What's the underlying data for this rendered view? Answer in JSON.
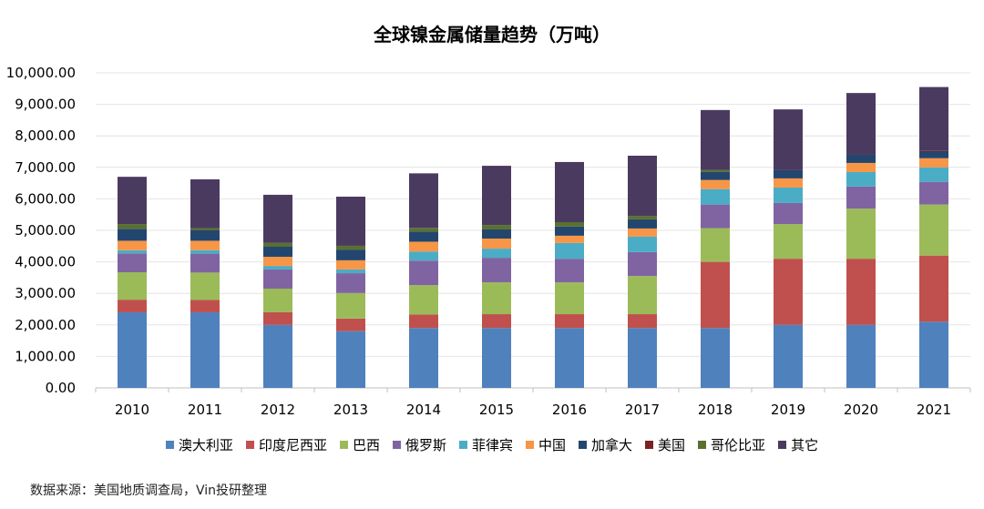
{
  "chart_data": {
    "type": "bar",
    "stacked": true,
    "title": "全球镍金属储量趋势（万吨）",
    "categories": [
      "2010",
      "2011",
      "2012",
      "2013",
      "2014",
      "2015",
      "2016",
      "2017",
      "2018",
      "2019",
      "2020",
      "2021"
    ],
    "ylim": [
      0,
      10000
    ],
    "yticks": [
      "0.00",
      "1,000.00",
      "2,000.00",
      "3,000.00",
      "4,000.00",
      "5,000.00",
      "6,000.00",
      "7,000.00",
      "8,000.00",
      "9,000.00",
      "10,000.00"
    ],
    "grid": true,
    "legend_position": "bottom",
    "series": [
      {
        "name": "澳大利亚",
        "color": "#4F81BD",
        "values": [
          2400,
          2400,
          2000,
          1800,
          1900,
          1900,
          1900,
          1900,
          1900,
          2000,
          2000,
          2100
        ]
      },
      {
        "name": "印度尼西亚",
        "color": "#C0504D",
        "values": [
          400,
          390,
          400,
          400,
          430,
          440,
          440,
          440,
          2100,
          2100,
          2100,
          2100
        ]
      },
      {
        "name": "巴西",
        "color": "#9BBB59",
        "values": [
          870,
          870,
          750,
          810,
          930,
          1010,
          1010,
          1210,
          1070,
          1100,
          1590,
          1620
        ]
      },
      {
        "name": "俄罗斯",
        "color": "#8064A2",
        "values": [
          600,
          600,
          610,
          630,
          780,
          780,
          750,
          760,
          750,
          670,
          700,
          720
        ]
      },
      {
        "name": "菲律宾",
        "color": "#4BACC6",
        "values": [
          100,
          110,
          110,
          120,
          290,
          290,
          500,
          490,
          490,
          490,
          460,
          460
        ]
      },
      {
        "name": "中国",
        "color": "#F79646",
        "values": [
          300,
          300,
          290,
          290,
          310,
          320,
          230,
          260,
          290,
          290,
          290,
          290
        ]
      },
      {
        "name": "加拿大",
        "color": "#23466F",
        "values": [
          380,
          330,
          320,
          340,
          320,
          290,
          290,
          290,
          260,
          260,
          260,
          210
        ]
      },
      {
        "name": "美国",
        "color": "#7B2220",
        "values": [
          0,
          0,
          0,
          0,
          0,
          0,
          0,
          0,
          0,
          0,
          0,
          20
        ]
      },
      {
        "name": "哥伦比亚",
        "color": "#5A7030",
        "values": [
          150,
          70,
          120,
          120,
          120,
          140,
          140,
          110,
          60,
          0,
          0,
          0
        ]
      },
      {
        "name": "其它",
        "color": "#4B3A60",
        "values": [
          1500,
          1550,
          1530,
          1560,
          1730,
          1880,
          1910,
          1910,
          1900,
          1930,
          1960,
          2030
        ]
      }
    ]
  },
  "source": "数据来源：美国地质调查局，Vin投研整理"
}
